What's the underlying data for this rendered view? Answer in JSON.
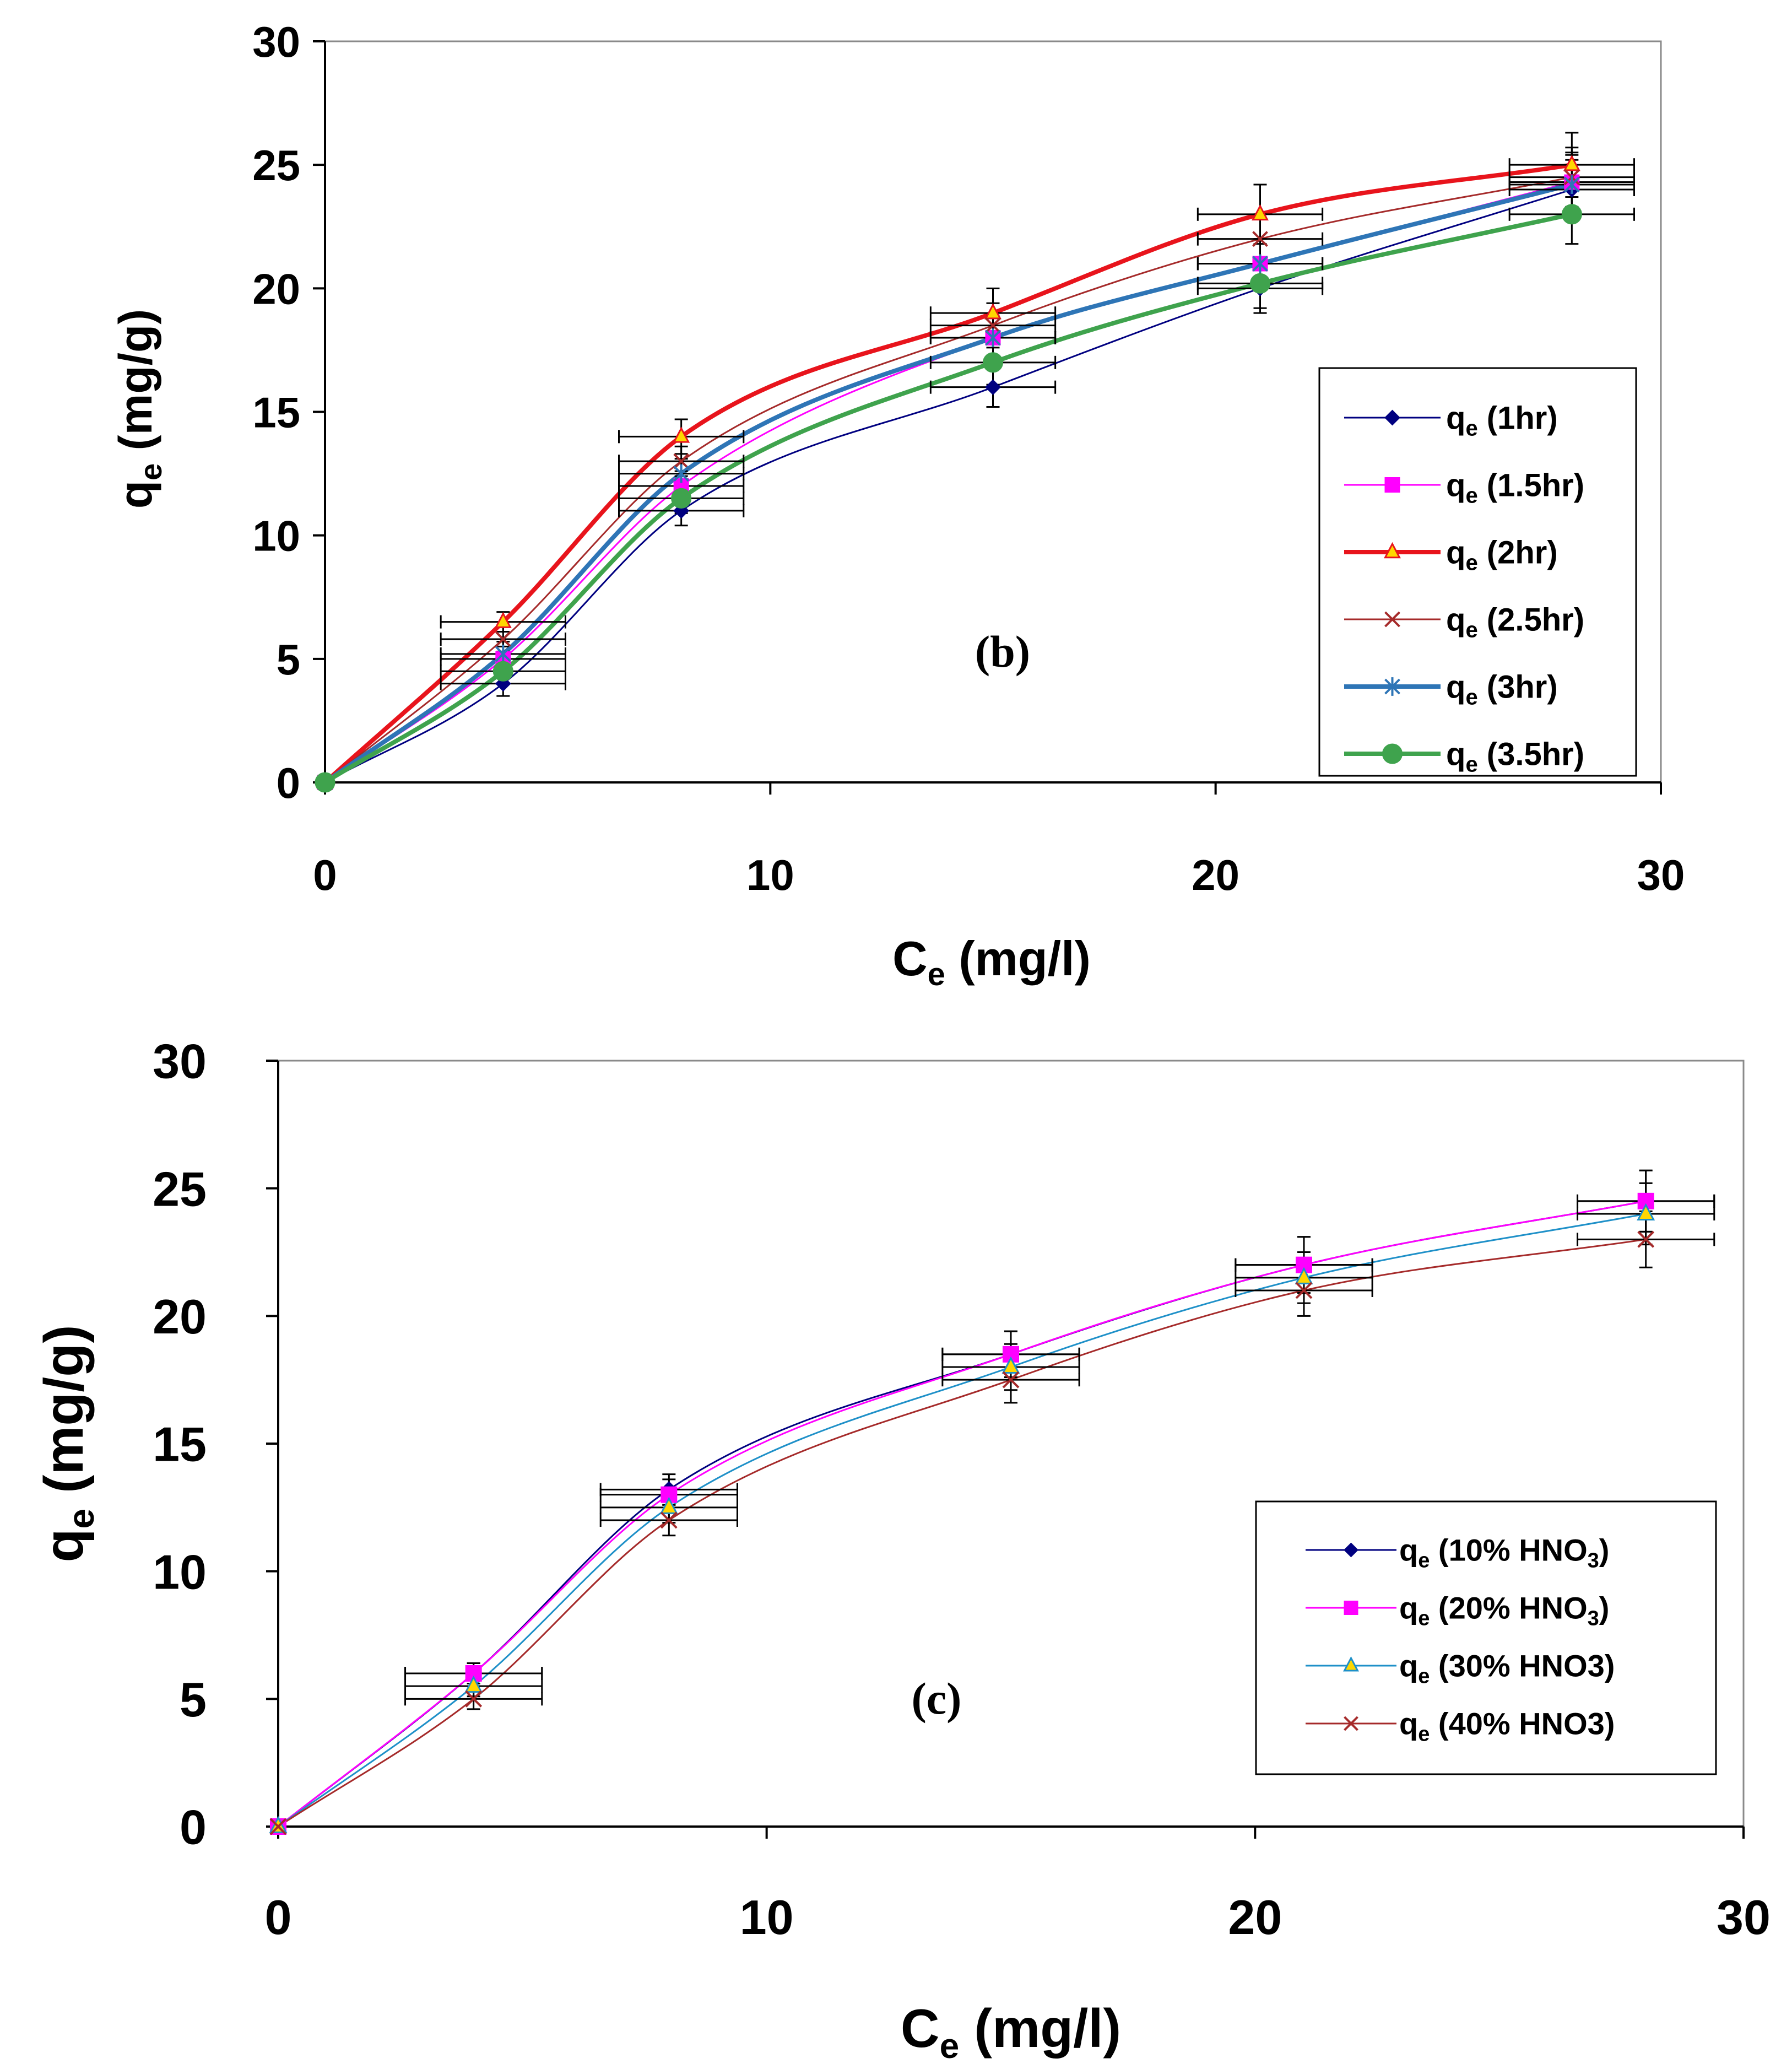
{
  "chart_data": [
    {
      "type": "line",
      "panel_label": "(b)",
      "xlabel": {
        "base": "C",
        "sub": "e",
        "unit": " (mg/l)"
      },
      "ylabel": {
        "base": "q",
        "sub": "e",
        "unit": " (mg/g)"
      },
      "xlim": [
        0,
        30
      ],
      "ylim": [
        0,
        30
      ],
      "x_ticks": [
        "0",
        "10",
        "20",
        "30"
      ],
      "y_ticks": [
        "0",
        "5",
        "10",
        "15",
        "20",
        "25",
        "30"
      ],
      "legend_position": "right",
      "grid": false,
      "x": [
        0,
        4,
        8,
        15,
        21,
        28
      ],
      "series": [
        {
          "name": "q",
          "sub": "e",
          "label": " (1hr)",
          "color": "#000080",
          "marker": "diamond",
          "values": [
            0,
            4.0,
            11.0,
            16.0,
            20.0,
            24.0
          ],
          "err_y": [
            0,
            0.5,
            0.6,
            0.8,
            1.0,
            1.2
          ]
        },
        {
          "name": "q",
          "sub": "e",
          "label": " (1.5hr)",
          "color": "#FF00FF",
          "marker": "square",
          "values": [
            0,
            5.0,
            12.0,
            18.0,
            21.0,
            24.3
          ],
          "err_y": [
            0,
            0.5,
            0.6,
            0.8,
            1.0,
            1.2
          ]
        },
        {
          "name": "q",
          "sub": "e",
          "label": " (2hr)",
          "color": "#E8141C",
          "marker": "triangle",
          "values": [
            0,
            6.5,
            14.0,
            19.0,
            23.0,
            25.0
          ],
          "err_y": [
            0,
            0.4,
            0.7,
            1.0,
            1.2,
            1.3
          ]
        },
        {
          "name": "q",
          "sub": "e",
          "label": " (2.5hr)",
          "color": "#A52A2A",
          "marker": "x",
          "values": [
            0,
            5.8,
            13.0,
            18.5,
            22.0,
            24.5
          ],
          "err_y": [
            0,
            0.5,
            0.6,
            0.9,
            1.0,
            1.2
          ]
        },
        {
          "name": "q",
          "sub": "e",
          "label": " (3hr)",
          "color": "#2E75B6",
          "marker": "star",
          "values": [
            0,
            5.2,
            12.5,
            18.0,
            21.0,
            24.2
          ],
          "err_y": [
            0,
            0.5,
            0.6,
            0.9,
            1.0,
            1.2
          ]
        },
        {
          "name": "q",
          "sub": "e",
          "label": " (3.5hr)",
          "color": "#3FA34D",
          "marker": "circle",
          "values": [
            0,
            4.5,
            11.5,
            17.0,
            20.2,
            23.0
          ],
          "err_y": [
            0,
            0.5,
            0.6,
            0.9,
            1.0,
            1.2
          ]
        }
      ],
      "x_err": 1.4
    },
    {
      "type": "line",
      "panel_label": "(c)",
      "xlabel": {
        "base": "C",
        "sub": "e",
        "unit": " (mg/l)"
      },
      "ylabel": {
        "base": "q",
        "sub": "e",
        "unit": " (mg/g)"
      },
      "xlim": [
        0,
        30
      ],
      "ylim": [
        0,
        30
      ],
      "x_ticks": [
        "0",
        "10",
        "20",
        "30"
      ],
      "y_ticks": [
        "0",
        "5",
        "10",
        "15",
        "20",
        "25",
        "30"
      ],
      "legend_position": "bottom-right",
      "grid": false,
      "x": [
        0,
        4,
        8,
        15,
        21,
        28
      ],
      "series": [
        {
          "name": "q",
          "sub": "e",
          "label": " (10% HNO",
          "label_sub": "3",
          "label_end": ")",
          "color": "#000080",
          "marker": "diamond",
          "values": [
            0,
            6.0,
            13.2,
            18.5,
            22.0,
            24.5
          ],
          "err_y": [
            0,
            0.4,
            0.6,
            0.9,
            1.1,
            1.2
          ]
        },
        {
          "name": "q",
          "sub": "e",
          "label": " (20% HNO",
          "label_sub": "3",
          "label_end": ")",
          "color": "#FF00FF",
          "marker": "square",
          "values": [
            0,
            6.0,
            13.0,
            18.5,
            22.0,
            24.5
          ],
          "err_y": [
            0,
            0.4,
            0.6,
            0.9,
            1.1,
            1.2
          ]
        },
        {
          "name": "q",
          "sub": "e",
          "label": " (30% HNO3)",
          "label_sub": "",
          "label_end": "",
          "color": "#1E90C8",
          "marker": "triangle",
          "values": [
            0,
            5.5,
            12.5,
            18.0,
            21.5,
            24.0
          ],
          "err_y": [
            0,
            0.4,
            0.6,
            0.9,
            1.0,
            1.2
          ]
        },
        {
          "name": "q",
          "sub": "e",
          "label": " (40% HNO3)",
          "label_sub": "",
          "label_end": "",
          "color": "#A52A2A",
          "marker": "x",
          "values": [
            0,
            5.0,
            12.0,
            17.5,
            21.0,
            23.0
          ],
          "err_y": [
            0,
            0.4,
            0.6,
            0.9,
            1.0,
            1.1
          ]
        }
      ],
      "x_err": 1.4
    }
  ]
}
